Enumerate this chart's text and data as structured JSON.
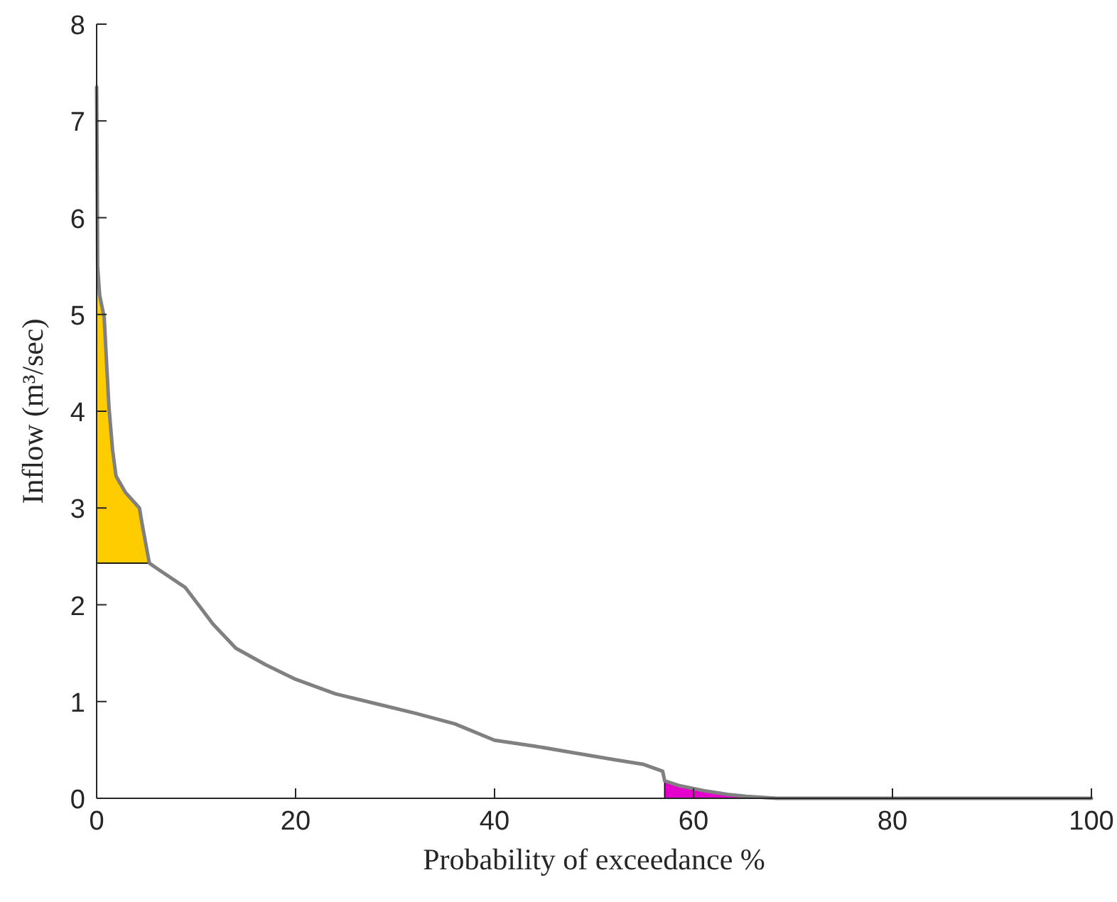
{
  "chart_data": {
    "type": "line",
    "xlabel": "Probability of exceedance %",
    "ylabel": "Inflow (m³/sec)",
    "xlim": [
      0,
      100
    ],
    "ylim": [
      0,
      8
    ],
    "xticks": [
      0,
      20,
      40,
      60,
      80,
      100
    ],
    "yticks": [
      0,
      1,
      2,
      3,
      4,
      5,
      6,
      7,
      8
    ],
    "grid": false,
    "series": [
      {
        "type": "area",
        "color": "#ffcc00",
        "x": [
          0,
          0.05,
          0.1,
          0.3,
          0.76,
          1.0,
          1.24,
          1.6,
          1.95,
          2.9,
          4.3,
          4.6,
          5.3
        ],
        "values": [
          7.35,
          6.5,
          5.5,
          5.2,
          4.97,
          4.5,
          4.04,
          3.6,
          3.33,
          3.16,
          3.0,
          2.82,
          2.43
        ]
      },
      {
        "type": "area",
        "color": "#e600cc",
        "x": [
          57.1,
          58.6,
          61,
          63.4,
          65.3,
          65.4
        ],
        "values": [
          0.18,
          0.13,
          0.08,
          0.04,
          0.02,
          0
        ]
      },
      {
        "color": "#808080",
        "x": [
          0,
          0.05,
          0.1,
          0.3,
          0.76,
          1.0,
          1.24,
          1.6,
          1.95,
          2.9,
          4.3,
          4.6,
          5.3,
          6,
          8.9,
          10.3,
          11.7,
          14,
          17,
          20,
          24,
          28,
          32,
          36,
          40,
          44,
          48,
          52,
          55,
          56.9,
          57.1,
          58.6,
          61,
          63.4,
          65.3,
          68.4,
          80,
          100
        ],
        "values": [
          7.35,
          6.5,
          5.5,
          5.2,
          4.97,
          4.5,
          4.04,
          3.6,
          3.33,
          3.16,
          3.0,
          2.82,
          2.43,
          2.38,
          2.18,
          1.99,
          1.8,
          1.55,
          1.38,
          1.23,
          1.08,
          0.98,
          0.88,
          0.77,
          0.6,
          0.54,
          0.47,
          0.4,
          0.35,
          0.28,
          0.18,
          0.13,
          0.08,
          0.04,
          0.02,
          0,
          0,
          0
        ]
      }
    ]
  }
}
